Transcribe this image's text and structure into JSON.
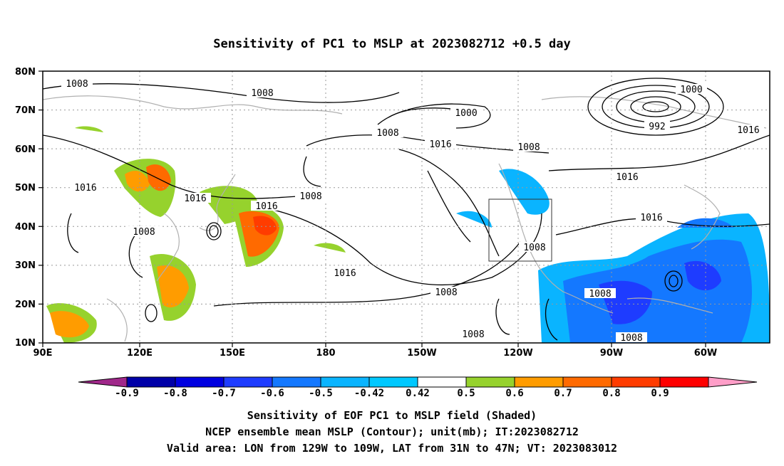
{
  "title": "Sensitivity of PC1 to MSLP at 2023082712 +0.5 day",
  "map": {
    "lat_labels": [
      "80N",
      "70N",
      "60N",
      "50N",
      "40N",
      "30N",
      "20N",
      "10N"
    ],
    "lon_labels": [
      "90E",
      "120E",
      "150E",
      "180",
      "150W",
      "120W",
      "90W",
      "60W"
    ],
    "contour_labels": [
      {
        "text": "1008"
      },
      {
        "text": "1008"
      },
      {
        "text": "1000"
      },
      {
        "text": "1008"
      },
      {
        "text": "1016"
      },
      {
        "text": "1008"
      },
      {
        "text": "1000"
      },
      {
        "text": "992"
      },
      {
        "text": "1016"
      },
      {
        "text": "1016"
      },
      {
        "text": "1016"
      },
      {
        "text": "1008"
      },
      {
        "text": "1016"
      },
      {
        "text": "1008"
      },
      {
        "text": "1016"
      },
      {
        "text": "1008"
      },
      {
        "text": "1016"
      },
      {
        "text": "1016"
      },
      {
        "text": "1008"
      },
      {
        "text": "1008"
      },
      {
        "text": "1008"
      },
      {
        "text": "1008"
      }
    ],
    "valid_area_box": {
      "lon_from": "129W",
      "lon_to": "109W",
      "lat_from": "31N",
      "lat_to": "47N"
    }
  },
  "colorbar": {
    "labels": [
      "-0.9",
      "-0.8",
      "-0.7",
      "-0.6",
      "-0.5",
      "-0.42",
      "0.42",
      "0.5",
      "0.6",
      "0.7",
      "0.8",
      "0.9"
    ],
    "colors": [
      "#a0288a",
      "#0000a8",
      "#0000e0",
      "#1e3cff",
      "#1478ff",
      "#0ab4ff",
      "#00c8ff",
      "#ffffff",
      "#96d22d",
      "#ff9c00",
      "#ff6a00",
      "#ff3c00",
      "#ff0000",
      "#ff9ec8"
    ]
  },
  "footer": {
    "line1": "Sensitivity of EOF PC1 to MSLP field (Shaded)",
    "line2": "NCEP ensemble mean MSLP (Contour); unit(mb); IT:2023082712",
    "line3": "Valid area: LON from 129W to 109W, LAT from 31N to 47N; VT: 2023083012"
  }
}
